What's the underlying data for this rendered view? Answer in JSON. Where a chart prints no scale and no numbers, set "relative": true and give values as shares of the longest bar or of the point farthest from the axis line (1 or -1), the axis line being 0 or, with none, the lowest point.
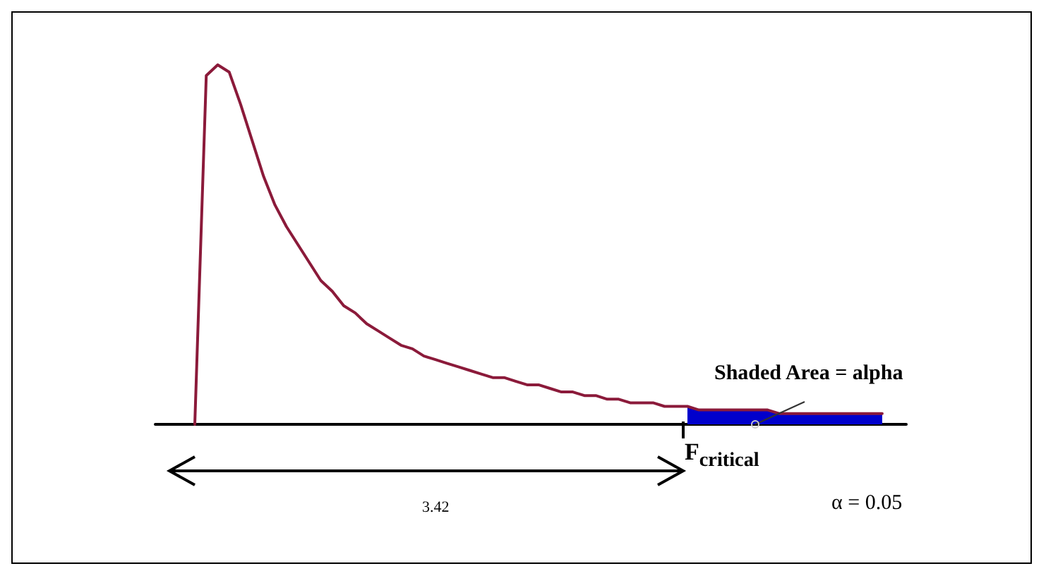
{
  "chart_data": {
    "type": "line",
    "relative": true,
    "categories": [
      null,
      null,
      null,
      null,
      null,
      null,
      null,
      null,
      null,
      null,
      null,
      null,
      null,
      null,
      null,
      null,
      null,
      null,
      null,
      null,
      null,
      null,
      null,
      null,
      null,
      null,
      null,
      null,
      null,
      null,
      null,
      null,
      null,
      null,
      null,
      null,
      null,
      null,
      null,
      null,
      null,
      null,
      null,
      null,
      null,
      null,
      null,
      null,
      null,
      null,
      null,
      null,
      null,
      null,
      null,
      null,
      null,
      null,
      null,
      null,
      null
    ],
    "series": [
      {
        "color": "#8b1a3a",
        "values": [
          0,
          0.97,
          1,
          0.98,
          0.89,
          0.79,
          0.69,
          0.61,
          0.55,
          0.5,
          0.45,
          0.4,
          0.37,
          0.33,
          0.31,
          0.28,
          0.26,
          0.24,
          0.22,
          0.21,
          0.19,
          0.18,
          0.17,
          0.16,
          0.15,
          0.14,
          0.13,
          0.13,
          0.12,
          0.11,
          0.11,
          0.1,
          0.09,
          0.09,
          0.08,
          0.08,
          0.07,
          0.07,
          0.06,
          0.06,
          0.06,
          0.05,
          0.05,
          0.05,
          0.04,
          0.04,
          0.04,
          0.04,
          0.04,
          0.04,
          0.04,
          0.03,
          0.03,
          0.03,
          0.03,
          0.03,
          0.03,
          0.03,
          0.03,
          0.03,
          0.03
        ]
      },
      {
        "type": "area",
        "color": "#0000cc",
        "values": [
          null,
          null,
          null,
          null,
          null,
          null,
          null,
          null,
          null,
          null,
          null,
          null,
          null,
          null,
          null,
          null,
          null,
          null,
          null,
          null,
          null,
          null,
          null,
          null,
          null,
          null,
          null,
          null,
          null,
          null,
          null,
          null,
          null,
          null,
          null,
          null,
          null,
          null,
          null,
          null,
          null,
          null,
          null,
          0.05,
          0.04,
          0.04,
          0.04,
          0.04,
          0.04,
          0.04,
          0.04,
          0.03,
          0.03,
          0.03,
          0.03,
          0.03,
          0.03,
          0.03,
          0.03,
          0.03,
          0.03
        ]
      }
    ],
    "annotations": [
      "Shaded Area = alpha",
      "F$_{critical}$",
      "3.42",
      "α = 0.05"
    ],
    "grid": false,
    "marker": "none",
    "line_style": "solid"
  }
}
